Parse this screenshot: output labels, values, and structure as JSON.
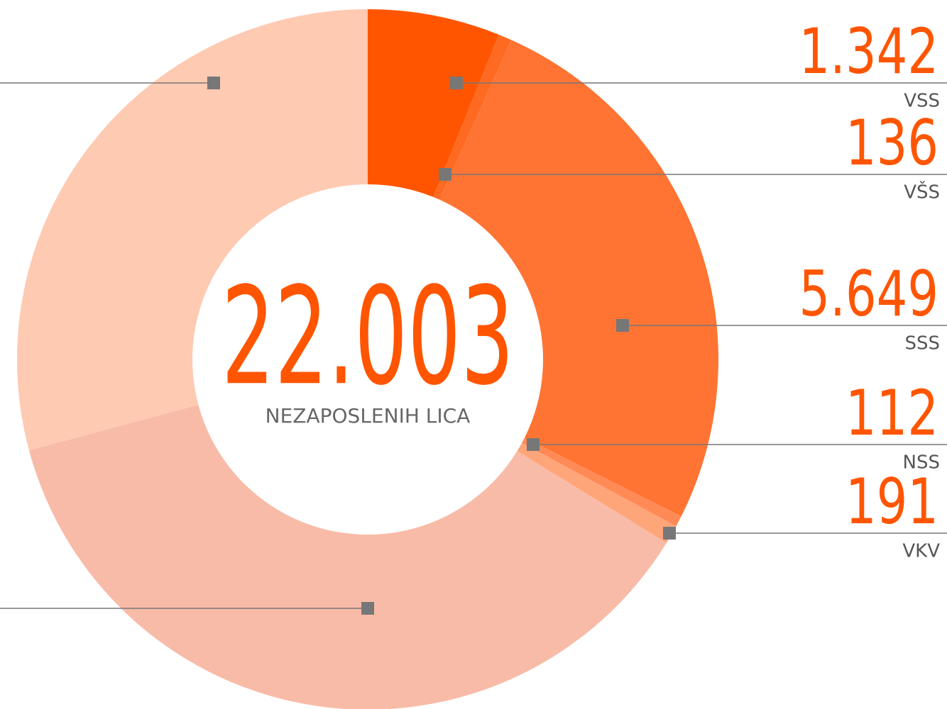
{
  "chart_data": {
    "type": "donut",
    "center_value": "22.003",
    "center_label": "NEZAPOSLENIH LICA",
    "categories": [
      "VSS",
      "VŠS",
      "SSS",
      "NSS",
      "VKV",
      null,
      null
    ],
    "values": [
      1342,
      136,
      5649,
      112,
      191,
      8153,
      6420
    ],
    "value_labels": [
      "1.342",
      "136",
      "5.649",
      "112",
      "191",
      null,
      null
    ],
    "colors": [
      "#ff5500",
      "#ff6a22",
      "#ff7433",
      "#ff8a55",
      "#ffa57a",
      "#f8bba8",
      "#fecab2"
    ]
  }
}
